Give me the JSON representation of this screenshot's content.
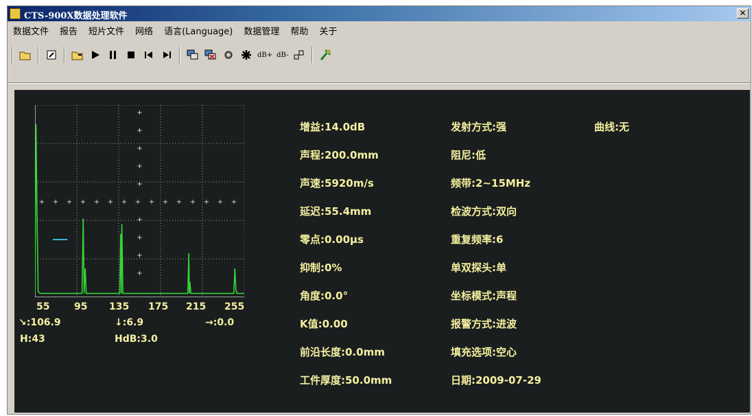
{
  "window": {
    "title": "CTS-900X数据处理软件",
    "close": "✕"
  },
  "menu": [
    "数据文件",
    "报告",
    "短片文件",
    "网络",
    "语言(Language)",
    "数据管理",
    "帮助",
    "关于"
  ],
  "toolbar": {
    "dbplus": "dB+",
    "dbminus": "dB-"
  },
  "chart_data": {
    "type": "line",
    "x_ticks": [
      "55",
      "95",
      "135",
      "175",
      "215",
      "255"
    ],
    "xlim": [
      55,
      255
    ],
    "ylim": [
      0,
      100
    ],
    "grid": true,
    "series": [
      {
        "x": [
          55,
          56,
          57,
          58,
          60,
          80,
          100,
          101,
          102,
          103,
          104,
          130,
          136,
          137,
          137.5,
          138,
          139,
          165,
          201,
          202,
          202.5,
          203,
          204,
          240,
          245,
          246,
          247,
          248,
          255
        ],
        "y": [
          2,
          90,
          40,
          3,
          2,
          2,
          2,
          41,
          2,
          15,
          2,
          2,
          2,
          33,
          2,
          38,
          2,
          2,
          2,
          23,
          2,
          8,
          2,
          2,
          2,
          15,
          4,
          2,
          2
        ]
      }
    ],
    "gate": {
      "x": [
        72,
        86
      ],
      "y": 30
    }
  },
  "readouts": {
    "a": "↘:106.9",
    "b": "↓:6.9",
    "c": "→:0.0",
    "h": "H:43",
    "hdb": "HdB:3.0"
  },
  "params": {
    "col1": [
      "增益:14.0dB",
      "声程:200.0mm",
      "声速:5920m/s",
      "延迟:55.4mm",
      "零点:0.00μs",
      "抑制:0%",
      "角度:0.0°",
      "K值:0.00",
      "前沿长度:0.0mm",
      "工件厚度:50.0mm"
    ],
    "col2": [
      "发射方式:强",
      "阻尼:低",
      "频带:2~15MHz",
      "检波方式:双向",
      "重复频率:6",
      "单双探头:单",
      "坐标模式:声程",
      "报警方式:进波",
      "填充选项:空心",
      "日期:2009-07-29"
    ],
    "col3": [
      "曲线:无"
    ]
  },
  "colors": {
    "background": "#1a1e1e",
    "text": "#f5f0a0",
    "waveform": "#36d436",
    "gate": "#38b8d8",
    "grid": "#a0a0a0"
  }
}
